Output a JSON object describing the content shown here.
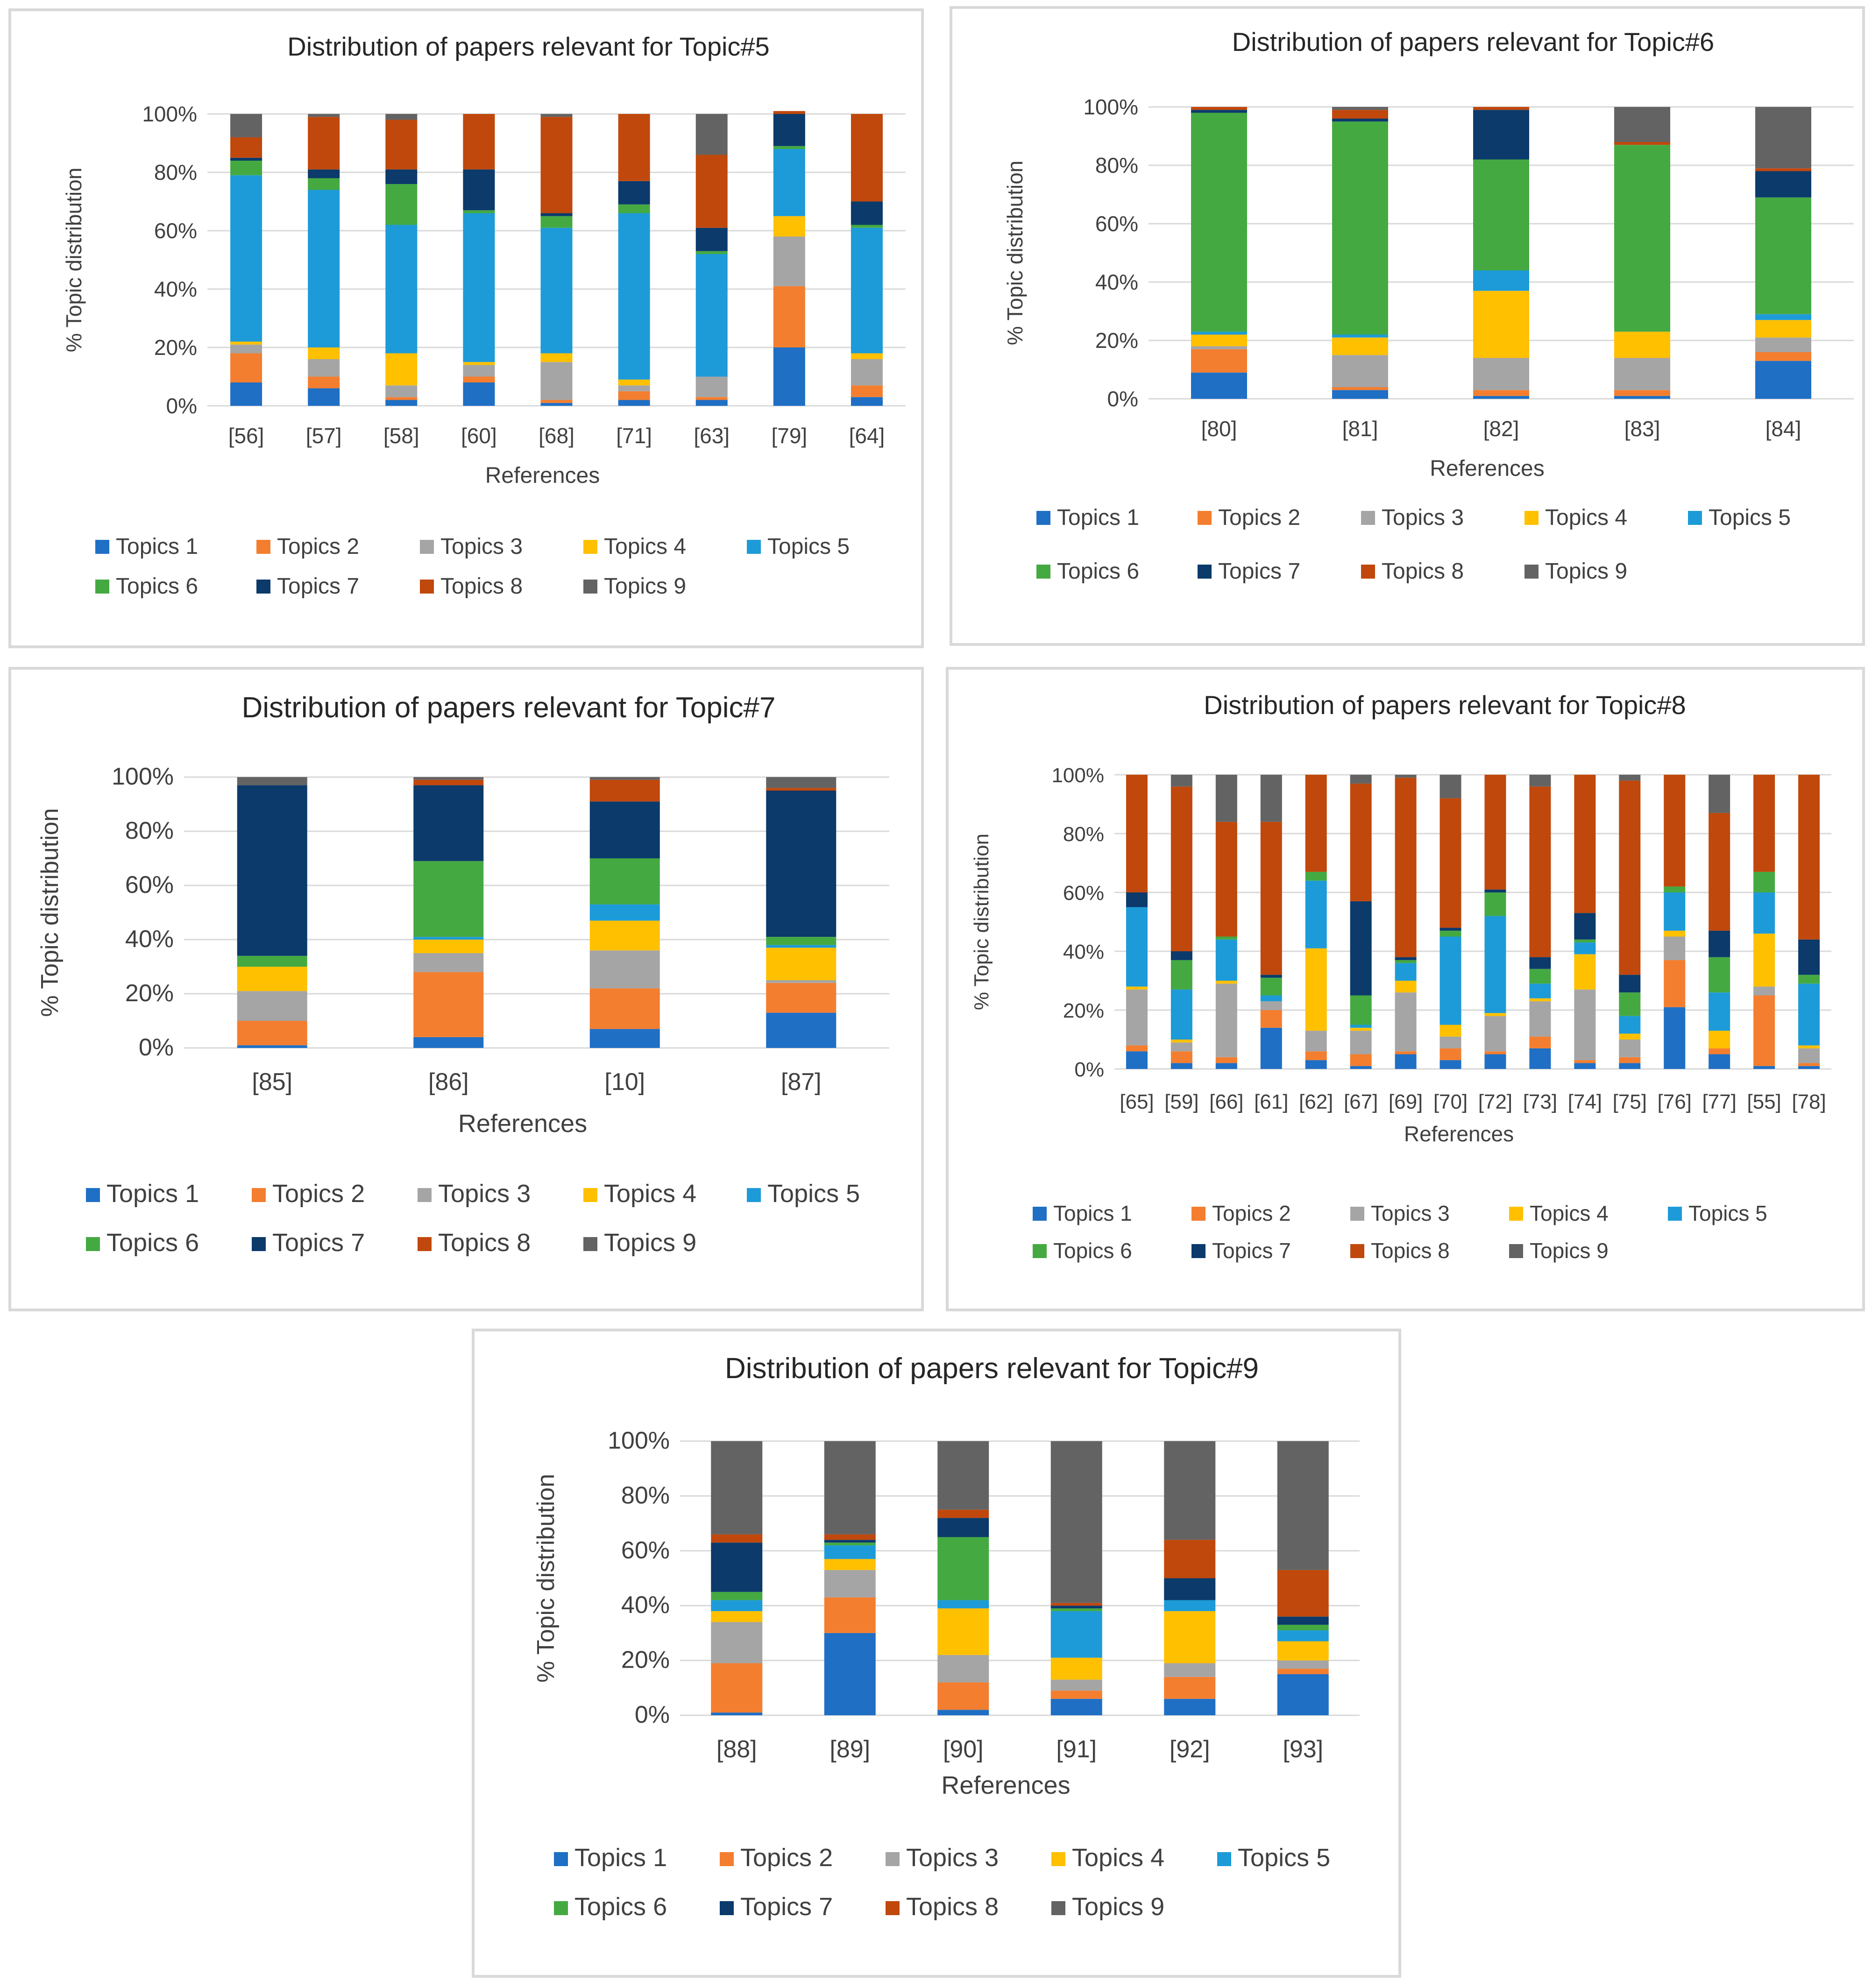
{
  "colors": {
    "Topics 1": "#1f6fc5",
    "Topics 2": "#f47e2f",
    "Topics 3": "#a5a5a5",
    "Topics 4": "#ffc000",
    "Topics 5": "#1d9bd8",
    "Topics 6": "#45a942",
    "Topics 7": "#0b3a6b",
    "Topics 8": "#c0480c",
    "Topics 9": "#636363"
  },
  "chart_data": [
    {
      "type": "bar",
      "stacked": true,
      "title": "Distribution of papers relevant for Topic#5",
      "xlabel": "References",
      "ylabel": "% Topic distribution",
      "ylim": [
        0,
        100
      ],
      "yticks": [
        "0%",
        "20%",
        "40%",
        "60%",
        "80%",
        "100%"
      ],
      "categories": [
        "[56]",
        "[57]",
        "[58]",
        "[60]",
        "[68]",
        "[71]",
        "[63]",
        "[79]",
        "[64]"
      ],
      "series": [
        {
          "name": "Topics 1",
          "values": [
            8,
            6,
            2,
            8,
            1,
            2,
            2,
            20,
            3
          ]
        },
        {
          "name": "Topics 2",
          "values": [
            10,
            4,
            1,
            2,
            1,
            3,
            1,
            21,
            4
          ]
        },
        {
          "name": "Topics 3",
          "values": [
            3,
            6,
            4,
            4,
            13,
            2,
            7,
            17,
            9
          ]
        },
        {
          "name": "Topics 4",
          "values": [
            1,
            4,
            11,
            1,
            3,
            2,
            0,
            7,
            2
          ]
        },
        {
          "name": "Topics 5",
          "values": [
            57,
            54,
            44,
            51,
            43,
            57,
            42,
            23,
            43
          ]
        },
        {
          "name": "Topics 6",
          "values": [
            5,
            4,
            14,
            1,
            4,
            3,
            1,
            1,
            1
          ]
        },
        {
          "name": "Topics 7",
          "values": [
            1,
            3,
            5,
            14,
            1,
            8,
            8,
            11,
            8
          ]
        },
        {
          "name": "Topics 8",
          "values": [
            7,
            18,
            17,
            19,
            33,
            23,
            25,
            1,
            30
          ]
        },
        {
          "name": "Topics 9",
          "values": [
            8,
            1,
            2,
            0,
            1,
            0,
            14,
            0,
            0
          ]
        }
      ]
    },
    {
      "type": "bar",
      "stacked": true,
      "title": "Distribution of papers relevant for Topic#6",
      "xlabel": "References",
      "ylabel": "% Topic distribution",
      "ylim": [
        0,
        100
      ],
      "yticks": [
        "0%",
        "20%",
        "40%",
        "60%",
        "80%",
        "100%"
      ],
      "categories": [
        "[80]",
        "[81]",
        "[82]",
        "[83]",
        "[84]"
      ],
      "series": [
        {
          "name": "Topics 1",
          "values": [
            9,
            3,
            1,
            1,
            13
          ]
        },
        {
          "name": "Topics 2",
          "values": [
            8,
            1,
            2,
            2,
            3
          ]
        },
        {
          "name": "Topics 3",
          "values": [
            1,
            11,
            11,
            11,
            5
          ]
        },
        {
          "name": "Topics 4",
          "values": [
            4,
            6,
            23,
            9,
            6
          ]
        },
        {
          "name": "Topics 5",
          "values": [
            1,
            1,
            7,
            0,
            2
          ]
        },
        {
          "name": "Topics 6",
          "values": [
            75,
            73,
            38,
            64,
            40
          ]
        },
        {
          "name": "Topics 7",
          "values": [
            1,
            1,
            17,
            0,
            9
          ]
        },
        {
          "name": "Topics 8",
          "values": [
            1,
            3,
            1,
            1,
            1
          ]
        },
        {
          "name": "Topics 9",
          "values": [
            0,
            1,
            0,
            12,
            21
          ]
        }
      ]
    },
    {
      "type": "bar",
      "stacked": true,
      "title": "Distribution of papers relevant for Topic#7",
      "xlabel": "References",
      "ylabel": "% Topic distribution",
      "ylim": [
        0,
        100
      ],
      "yticks": [
        "0%",
        "20%",
        "40%",
        "60%",
        "80%",
        "100%"
      ],
      "categories": [
        "[85]",
        "[86]",
        "[10]",
        "[87]"
      ],
      "series": [
        {
          "name": "Topics 1",
          "values": [
            1,
            4,
            7,
            13
          ]
        },
        {
          "name": "Topics 2",
          "values": [
            9,
            24,
            15,
            11
          ]
        },
        {
          "name": "Topics 3",
          "values": [
            11,
            7,
            14,
            1
          ]
        },
        {
          "name": "Topics 4",
          "values": [
            9,
            5,
            11,
            12
          ]
        },
        {
          "name": "Topics 5",
          "values": [
            0,
            1,
            6,
            1
          ]
        },
        {
          "name": "Topics 6",
          "values": [
            4,
            28,
            17,
            3
          ]
        },
        {
          "name": "Topics 7",
          "values": [
            63,
            28,
            21,
            54
          ]
        },
        {
          "name": "Topics 8",
          "values": [
            0,
            2,
            8,
            1
          ]
        },
        {
          "name": "Topics 9",
          "values": [
            3,
            1,
            1,
            4
          ]
        }
      ]
    },
    {
      "type": "bar",
      "stacked": true,
      "title": "Distribution of papers relevant for Topic#8",
      "xlabel": "References",
      "ylabel": "% Topic distribution",
      "ylim": [
        0,
        100
      ],
      "yticks": [
        "0%",
        "20%",
        "40%",
        "60%",
        "80%",
        "100%"
      ],
      "categories": [
        "[65]",
        "[59]",
        "[66]",
        "[61]",
        "[62]",
        "[67]",
        "[69]",
        "[70]",
        "[72]",
        "[73]",
        "[74]",
        "[75]",
        "[76]",
        "[77]",
        "[55]",
        "[78]"
      ],
      "series": [
        {
          "name": "Topics 1",
          "values": [
            6,
            2,
            2,
            14,
            3,
            1,
            5,
            3,
            5,
            7,
            2,
            2,
            21,
            5,
            1,
            1
          ]
        },
        {
          "name": "Topics 2",
          "values": [
            2,
            4,
            2,
            6,
            3,
            4,
            1,
            4,
            1,
            4,
            1,
            2,
            16,
            2,
            24,
            1
          ]
        },
        {
          "name": "Topics 3",
          "values": [
            19,
            3,
            25,
            3,
            7,
            8,
            20,
            4,
            12,
            12,
            24,
            6,
            8,
            0,
            3,
            5
          ]
        },
        {
          "name": "Topics 4",
          "values": [
            1,
            1,
            1,
            0,
            28,
            1,
            4,
            4,
            1,
            1,
            12,
            2,
            2,
            6,
            18,
            1
          ]
        },
        {
          "name": "Topics 5",
          "values": [
            27,
            17,
            14,
            2,
            23,
            1,
            6,
            30,
            33,
            5,
            4,
            6,
            13,
            13,
            14,
            21
          ]
        },
        {
          "name": "Topics 6",
          "values": [
            0,
            10,
            1,
            6,
            3,
            10,
            1,
            2,
            8,
            5,
            1,
            8,
            2,
            12,
            7,
            3
          ]
        },
        {
          "name": "Topics 7",
          "values": [
            5,
            3,
            0,
            1,
            0,
            32,
            1,
            1,
            1,
            4,
            9,
            6,
            0,
            9,
            0,
            12
          ]
        },
        {
          "name": "Topics 8",
          "values": [
            40,
            56,
            39,
            52,
            33,
            40,
            61,
            44,
            39,
            58,
            47,
            66,
            38,
            40,
            33,
            56
          ]
        },
        {
          "name": "Topics 9",
          "values": [
            0,
            4,
            16,
            16,
            0,
            3,
            1,
            8,
            0,
            4,
            0,
            2,
            0,
            13,
            0,
            0
          ]
        }
      ]
    },
    {
      "type": "bar",
      "stacked": true,
      "title": "Distribution of papers relevant for Topic#9",
      "xlabel": "References",
      "ylabel": "% Topic distribution",
      "ylim": [
        0,
        100
      ],
      "yticks": [
        "0%",
        "20%",
        "40%",
        "60%",
        "80%",
        "100%"
      ],
      "categories": [
        "[88]",
        "[89]",
        "[90]",
        "[91]",
        "[92]",
        "[93]"
      ],
      "series": [
        {
          "name": "Topics 1",
          "values": [
            1,
            30,
            2,
            6,
            6,
            15
          ]
        },
        {
          "name": "Topics 2",
          "values": [
            18,
            13,
            10,
            3,
            8,
            2
          ]
        },
        {
          "name": "Topics 3",
          "values": [
            15,
            10,
            10,
            4,
            5,
            3
          ]
        },
        {
          "name": "Topics 4",
          "values": [
            4,
            4,
            17,
            8,
            19,
            7
          ]
        },
        {
          "name": "Topics 5",
          "values": [
            4,
            5,
            3,
            17,
            4,
            4
          ]
        },
        {
          "name": "Topics 6",
          "values": [
            3,
            1,
            23,
            1,
            0,
            2
          ]
        },
        {
          "name": "Topics 7",
          "values": [
            18,
            1,
            7,
            1,
            8,
            3
          ]
        },
        {
          "name": "Topics 8",
          "values": [
            3,
            2,
            3,
            1,
            14,
            17
          ]
        },
        {
          "name": "Topics 9",
          "values": [
            34,
            34,
            25,
            59,
            36,
            47
          ]
        }
      ]
    }
  ]
}
